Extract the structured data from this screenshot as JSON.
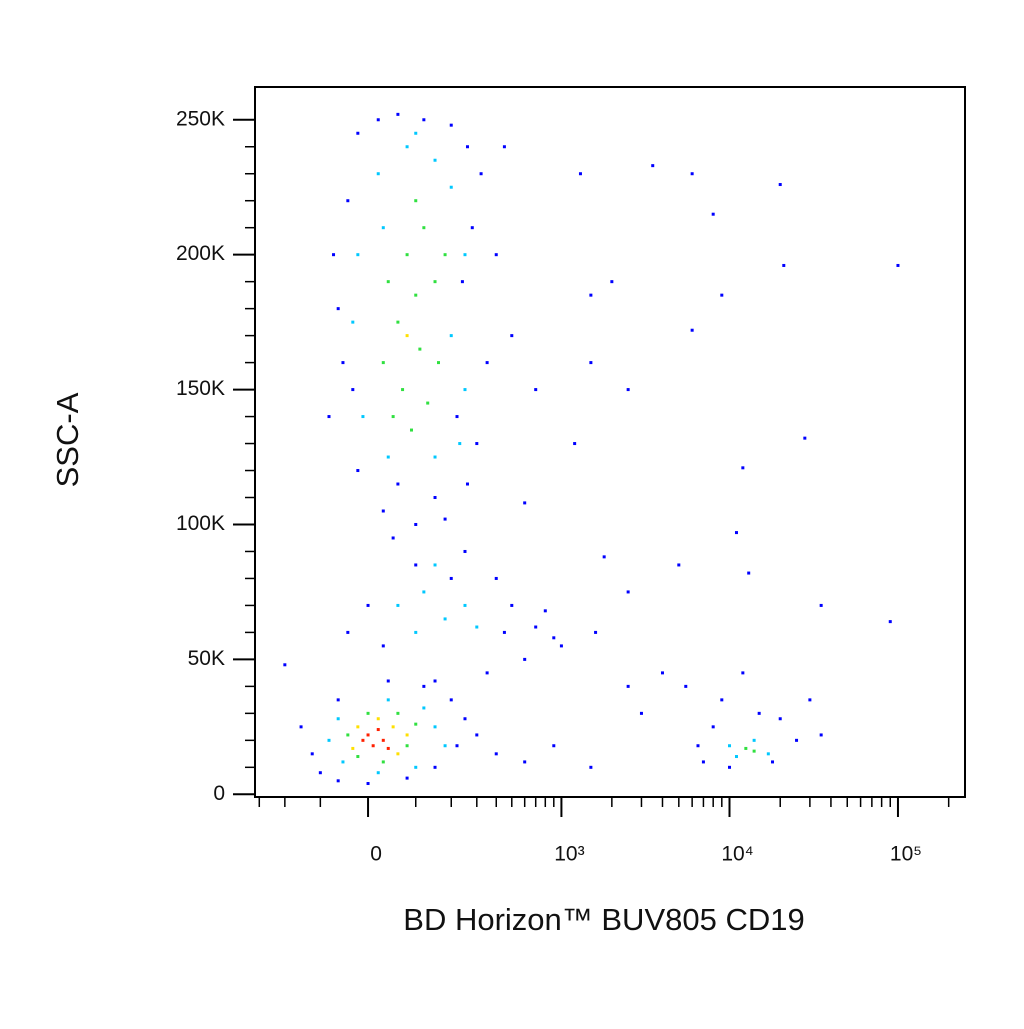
{
  "chart_data": {
    "type": "scatter",
    "xlabel": "BD Horizon™ BUV805 CD19",
    "ylabel": "SSC-A",
    "xscale": "biexponential",
    "xlim": [
      -320,
      250000
    ],
    "ylim": [
      -1000,
      262144
    ],
    "xticks": [
      0,
      {
        "value": 1000,
        "label": "10³"
      },
      {
        "value": 10000,
        "label": "10⁴"
      },
      {
        "value": 100000,
        "label": "10⁵"
      }
    ],
    "yticks": [
      0,
      {
        "value": 50000,
        "label": "50K"
      },
      {
        "value": 100000,
        "label": "100K"
      },
      {
        "value": 150000,
        "label": "150K"
      },
      {
        "value": 200000,
        "label": "200K"
      },
      {
        "value": 250000,
        "label": "250K"
      }
    ],
    "xminorticks": [
      -300,
      -200,
      -100,
      100,
      200,
      300,
      400,
      500,
      600,
      700,
      800,
      900,
      2000,
      3000,
      4000,
      5000,
      6000,
      7000,
      8000,
      9000,
      20000,
      30000,
      40000,
      50000,
      60000,
      70000,
      80000,
      90000,
      200000
    ],
    "yminorticks": [
      10000,
      20000,
      30000,
      40000,
      60000,
      70000,
      80000,
      90000,
      110000,
      120000,
      130000,
      140000,
      160000,
      170000,
      180000,
      190000,
      210000,
      220000,
      230000,
      240000
    ],
    "series": [
      {
        "color": "#0000ff",
        "x": [
          -60,
          -80,
          -40,
          -20,
          20,
          60,
          120,
          200,
          260,
          320,
          400,
          350,
          300,
          260,
          150,
          60,
          -20,
          -50,
          -70,
          30,
          100,
          180,
          240,
          280,
          -30,
          220,
          500,
          700,
          450,
          1300,
          1500,
          2000,
          3500,
          6000,
          8000,
          9000,
          20000,
          21000,
          100000,
          6000,
          1500,
          1200,
          2500,
          28000,
          12000,
          11000,
          13000,
          35000,
          90000,
          1800,
          2500,
          5000,
          600,
          50,
          100,
          250,
          400,
          500,
          700,
          900,
          1000,
          600,
          350,
          150,
          30,
          0,
          -40,
          200,
          450,
          800,
          1600,
          -150,
          -120,
          -100,
          -60,
          0,
          80,
          150,
          220,
          250,
          200,
          120,
          40,
          -60,
          -200,
          300,
          400,
          600,
          900,
          1500,
          2500,
          3000,
          7000,
          8000,
          9000,
          12000,
          15000,
          20000,
          25000,
          30000,
          35000,
          18000,
          10000,
          6500,
          5500,
          4000
        ],
        "values": [
          180000,
          140000,
          220000,
          245000,
          250000,
          252000,
          250000,
          248000,
          240000,
          230000,
          200000,
          160000,
          130000,
          115000,
          110000,
          115000,
          120000,
          160000,
          200000,
          105000,
          100000,
          102000,
          190000,
          210000,
          150000,
          140000,
          170000,
          150000,
          240000,
          230000,
          185000,
          190000,
          233000,
          230000,
          215000,
          185000,
          226000,
          196000,
          196000,
          172000,
          160000,
          130000,
          150000,
          132000,
          121000,
          97000,
          82000,
          70000,
          64000,
          88000,
          75000,
          85000,
          108000,
          95000,
          85000,
          90000,
          80000,
          70000,
          62000,
          58000,
          55000,
          50000,
          45000,
          42000,
          55000,
          70000,
          60000,
          80000,
          60000,
          68000,
          60000,
          25000,
          15000,
          8000,
          5000,
          4000,
          6000,
          10000,
          18000,
          28000,
          35000,
          40000,
          42000,
          35000,
          48000,
          22000,
          15000,
          12000,
          18000,
          10000,
          40000,
          30000,
          12000,
          25000,
          35000,
          45000,
          30000,
          28000,
          20000,
          35000,
          22000,
          12000,
          10000,
          18000,
          40000,
          45000
        ]
      },
      {
        "color": "#00c8ff",
        "x": [
          20,
          80,
          150,
          200,
          -20,
          30,
          250,
          -30,
          200,
          250,
          -10,
          40,
          150,
          230,
          100,
          60,
          120,
          180,
          250,
          100,
          300,
          150,
          -80,
          -50,
          20,
          100,
          150,
          120,
          40,
          -60,
          180,
          10000,
          14000,
          17000,
          11000
        ],
        "values": [
          230000,
          240000,
          235000,
          225000,
          200000,
          210000,
          200000,
          175000,
          170000,
          150000,
          140000,
          125000,
          125000,
          130000,
          245000,
          70000,
          75000,
          65000,
          70000,
          60000,
          62000,
          85000,
          20000,
          12000,
          8000,
          10000,
          25000,
          32000,
          35000,
          28000,
          18000,
          18000,
          20000,
          15000,
          14000
        ]
      },
      {
        "color": "#30e040",
        "x": [
          40,
          80,
          120,
          60,
          100,
          150,
          30,
          70,
          110,
          160,
          50,
          90,
          130,
          100,
          180,
          -40,
          -20,
          30,
          80,
          100,
          60,
          0,
          12500,
          14000
        ],
        "values": [
          190000,
          200000,
          210000,
          175000,
          185000,
          190000,
          160000,
          150000,
          165000,
          160000,
          140000,
          135000,
          145000,
          220000,
          200000,
          22000,
          14000,
          12000,
          18000,
          26000,
          30000,
          30000,
          17000,
          16000
        ]
      },
      {
        "color": "#ffe000",
        "x": [
          80,
          -20,
          50,
          60,
          -30,
          20,
          80
        ],
        "values": [
          170000,
          25000,
          25000,
          15000,
          17000,
          28000,
          22000
        ]
      },
      {
        "color": "#ff2000",
        "x": [
          0,
          10,
          30,
          -10,
          20,
          40
        ],
        "values": [
          22000,
          18000,
          20000,
          20000,
          24000,
          17000
        ]
      }
    ]
  }
}
